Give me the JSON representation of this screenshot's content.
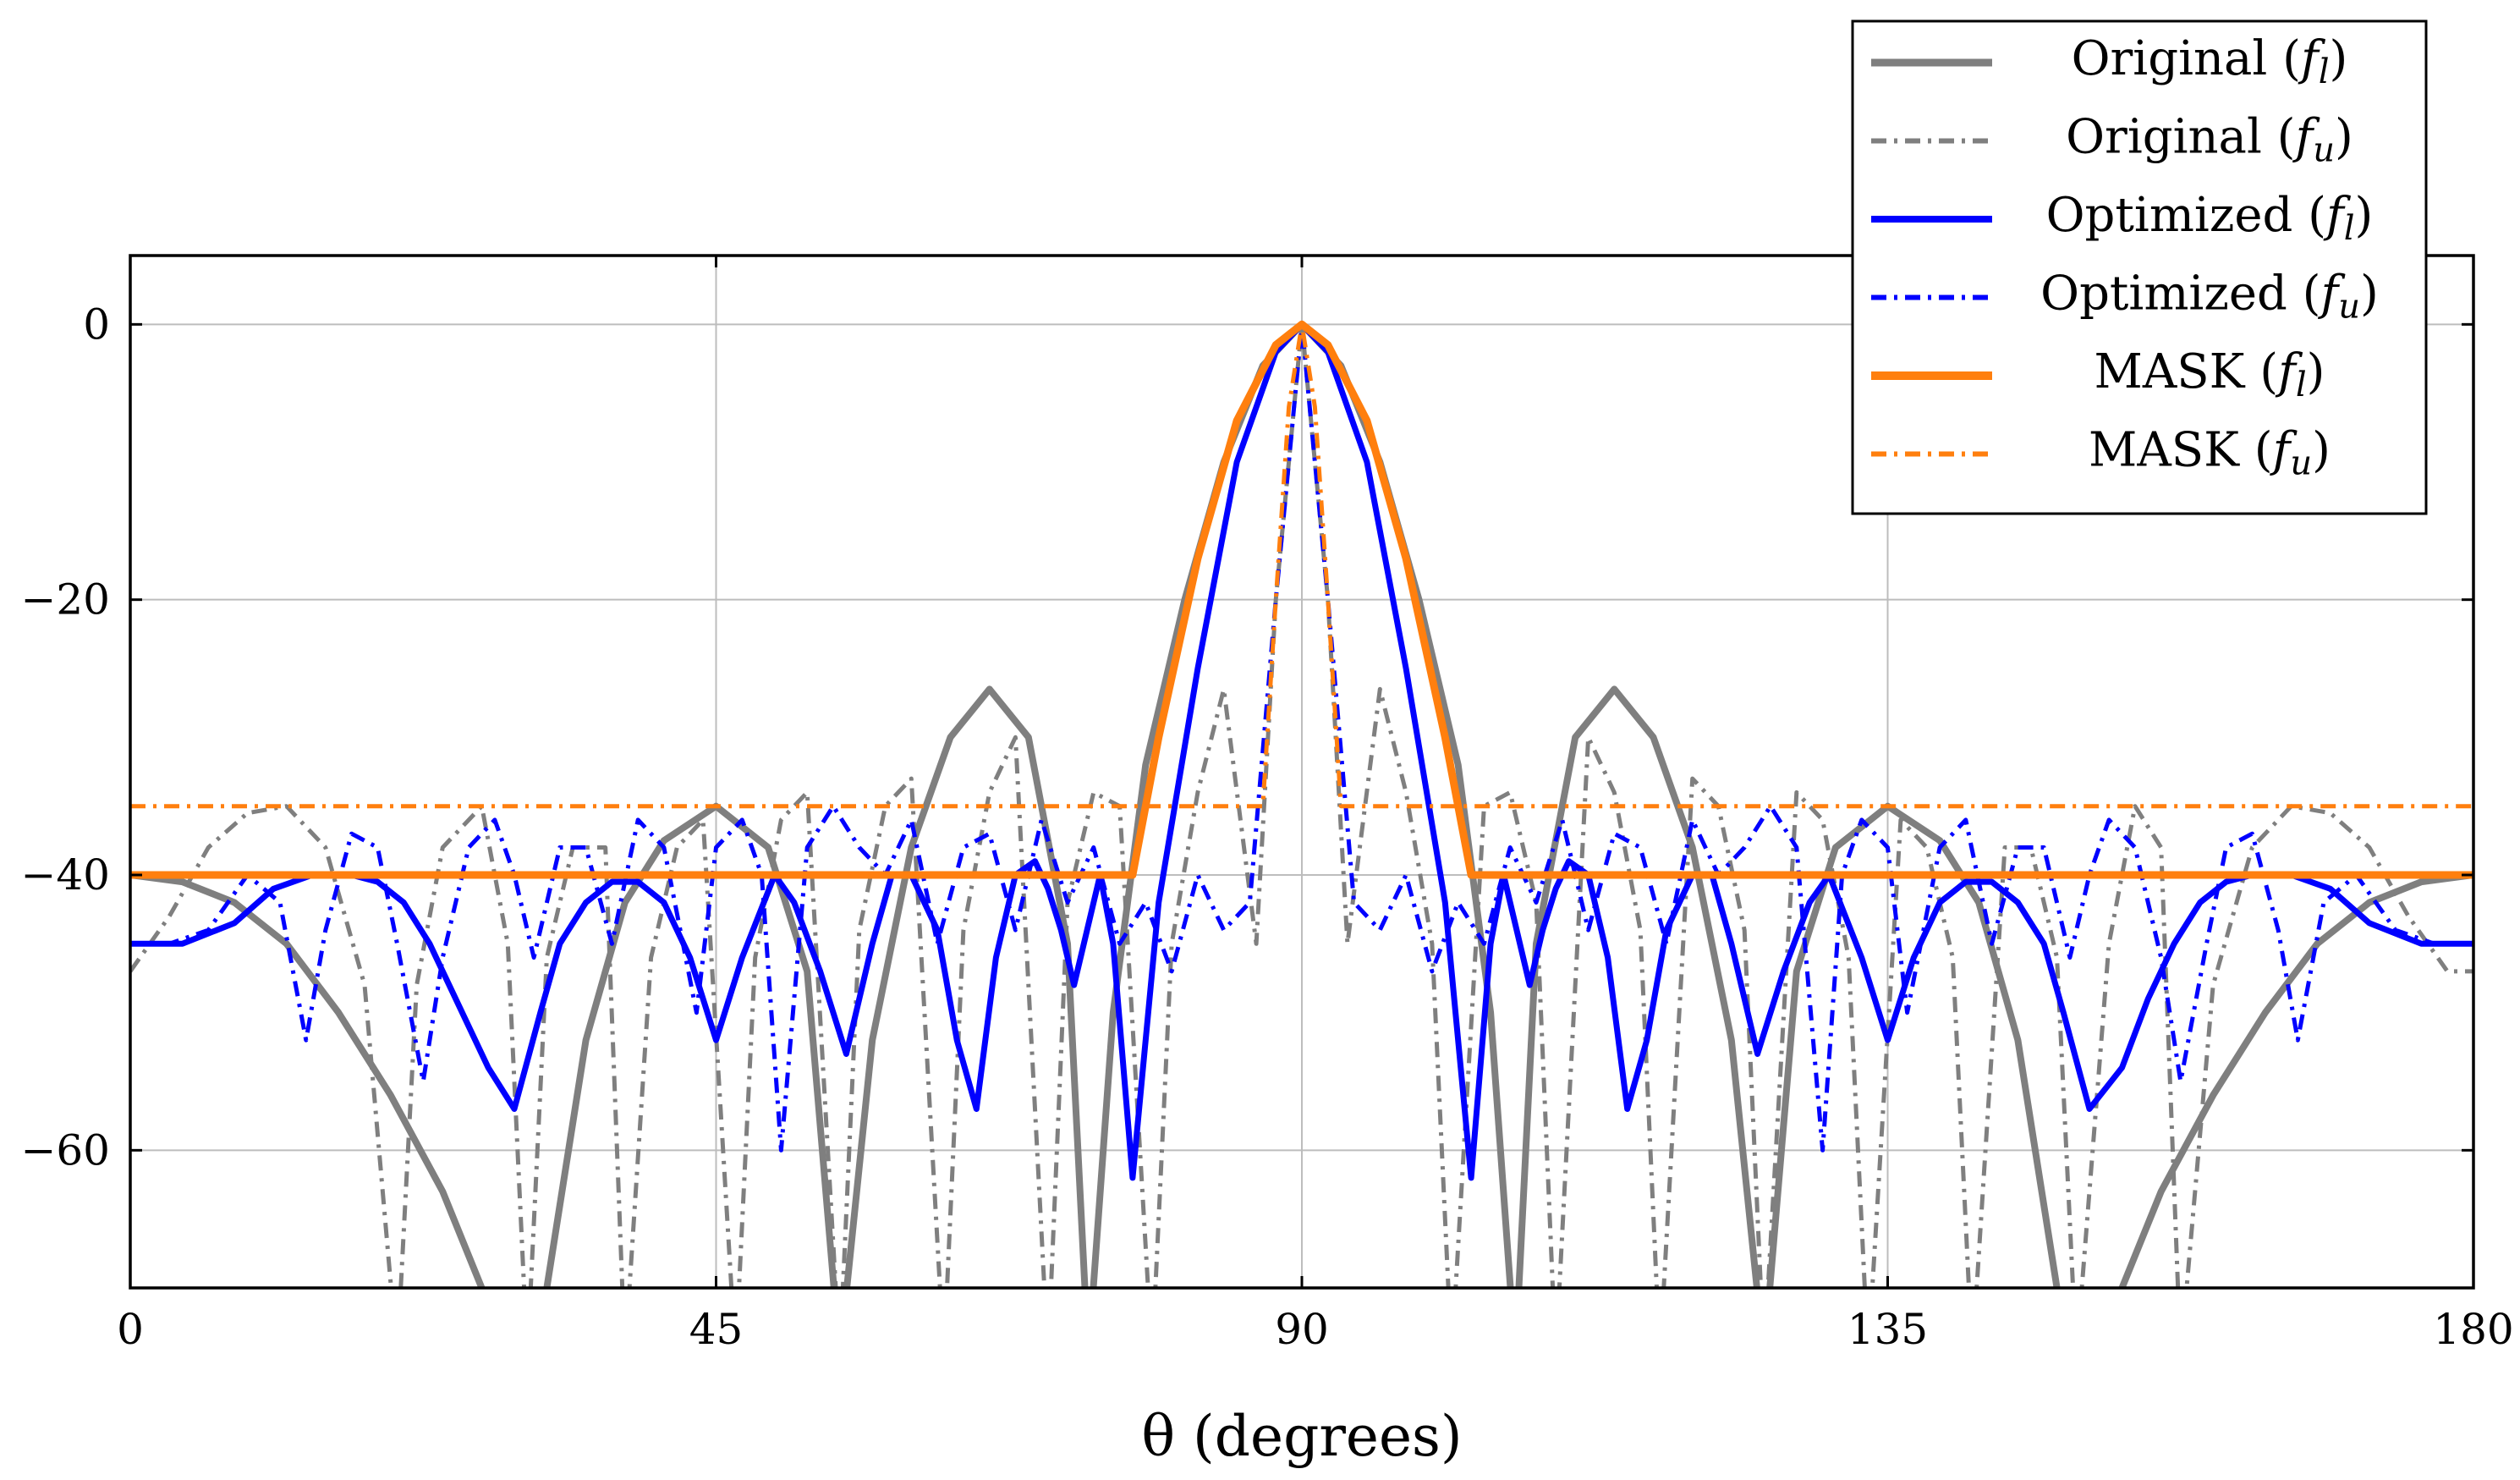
{
  "chart_data": {
    "type": "line",
    "title": "",
    "xlabel": "θ (degrees)",
    "ylabel": "",
    "xlim": [
      0,
      180
    ],
    "ylim": [
      -70,
      5
    ],
    "xticks": [
      0,
      45,
      90,
      135,
      180
    ],
    "yticks": [
      0,
      -20,
      -40,
      -60
    ],
    "xtick_labels": [
      "0",
      "45",
      "90",
      "135",
      "180"
    ],
    "ytick_labels": [
      "0",
      "−20",
      "−40",
      "−60"
    ],
    "grid": true,
    "legend_position": "top-right",
    "series": [
      {
        "name": "Original (f_l)",
        "label_main": "Original (",
        "label_var": "f",
        "label_sub": "l",
        "label_end": ")",
        "color": "#7f7f7f",
        "style": "solid",
        "x": [
          0,
          4,
          8,
          12,
          16,
          20,
          24,
          27,
          29.5,
          32,
          35,
          38,
          41,
          45,
          49,
          52,
          54.5,
          57,
          60,
          63,
          66,
          69,
          72,
          73.6,
          75.5,
          78,
          81,
          84,
          87,
          90,
          93,
          96,
          99,
          102,
          104.5,
          106.4,
          108,
          111,
          114,
          117,
          120,
          123,
          125.5,
          128,
          131,
          135,
          139,
          142,
          145,
          148,
          150.5,
          153,
          156,
          160,
          164,
          168,
          172,
          176,
          180
        ],
        "y": [
          -40,
          -40.5,
          -42,
          -45,
          -50,
          -56,
          -63,
          -70,
          -78,
          -70,
          -52,
          -42,
          -37.5,
          -35,
          -38,
          -47,
          -75,
          -52,
          -38,
          -30,
          -26.5,
          -30,
          -45,
          -75,
          -50,
          -32,
          -20,
          -10,
          -3,
          0,
          -3,
          -10,
          -20,
          -32,
          -50,
          -75,
          -45,
          -30,
          -26.5,
          -30,
          -38,
          -52,
          -75,
          -47,
          -38,
          -35,
          -37.5,
          -42,
          -52,
          -70,
          -78,
          -70,
          -63,
          -56,
          -50,
          -45,
          -42,
          -40.5,
          -40
        ]
      },
      {
        "name": "Original (f_u)",
        "label_main": "Original (",
        "label_var": "f",
        "label_sub": "u",
        "label_end": ")",
        "color": "#7f7f7f",
        "style": "dashdot",
        "x": [
          0,
          3,
          6,
          9,
          12,
          15,
          18,
          20.5,
          22,
          24,
          27,
          29,
          30.5,
          32,
          34,
          36.5,
          38,
          40,
          42,
          44,
          46.5,
          48,
          50,
          52,
          54.5,
          56,
          58,
          60,
          62.5,
          64,
          66,
          68,
          70.5,
          72,
          74,
          76,
          78.5,
          80,
          82,
          84,
          86.5,
          88,
          90,
          92,
          93.5,
          96,
          98,
          100,
          101.5,
          104,
          106,
          108,
          109.5,
          112,
          114,
          116,
          117.5,
          120,
          122,
          124,
          125.5,
          128,
          130,
          132,
          133.5,
          136,
          138,
          140,
          141.5,
          144,
          146,
          148,
          149.5,
          152,
          154,
          156,
          157.5,
          160,
          163,
          166,
          169,
          172,
          175,
          178,
          180
        ],
        "y": [
          -47,
          -43,
          -38,
          -35.5,
          -35,
          -38,
          -48,
          -75,
          -48,
          -38,
          -35,
          -45,
          -75,
          -46,
          -38,
          -38,
          -75,
          -46,
          -38,
          -36,
          -75,
          -46,
          -36,
          -34,
          -75,
          -44,
          -35,
          -33,
          -75,
          -44,
          -34,
          -30,
          -75,
          -42,
          -34,
          -35,
          -75,
          -45,
          -34,
          -26.5,
          -45,
          -20,
          0,
          -20,
          -45,
          -26.5,
          -34,
          -45,
          -75,
          -35,
          -34,
          -42,
          -75,
          -30,
          -34,
          -44,
          -75,
          -33,
          -35,
          -44,
          -75,
          -34,
          -36,
          -46,
          -75,
          -36,
          -38,
          -46,
          -75,
          -38,
          -38,
          -46,
          -75,
          -45,
          -35,
          -38,
          -75,
          -48,
          -38,
          -35,
          -35.5,
          -38,
          -43,
          -47,
          -47
        ]
      },
      {
        "name": "Optimized (f_l)",
        "label_main": "Optimized (",
        "label_var": "f",
        "label_sub": "l",
        "label_end": ")",
        "color": "#0000ff",
        "style": "solid",
        "x": [
          0,
          4,
          8,
          11,
          14,
          17,
          19,
          21,
          23,
          25,
          27.5,
          29.5,
          31.5,
          33,
          35,
          37,
          39,
          41,
          43,
          45,
          47,
          49.5,
          51,
          53,
          55,
          57,
          58.5,
          60,
          62,
          63.5,
          65,
          66.5,
          68,
          69.5,
          70.5,
          71.5,
          72.5,
          73.5,
          74.5,
          75.5,
          77,
          79,
          82,
          85,
          88,
          90,
          92,
          95,
          98,
          101,
          103,
          104.5,
          105.5,
          106.5,
          107.5,
          108.5,
          109.5,
          110.5,
          112,
          113.5,
          115,
          116.5,
          118,
          120,
          121.5,
          123,
          125,
          127,
          129,
          130.5,
          133,
          135,
          137,
          139,
          141,
          143,
          145,
          147,
          148.5,
          150.5,
          153,
          155,
          157,
          159,
          161,
          163,
          166,
          169,
          172,
          176,
          180
        ],
        "y": [
          -45,
          -45,
          -43.5,
          -41,
          -40,
          -40,
          -40.5,
          -42,
          -45,
          -49,
          -54,
          -57,
          -50,
          -45,
          -42,
          -40.5,
          -40.5,
          -42,
          -46,
          -52,
          -46,
          -40,
          -42,
          -47,
          -53,
          -45,
          -40,
          -40,
          -44,
          -52,
          -57,
          -46,
          -40,
          -39,
          -41,
          -44,
          -48,
          -44,
          -40,
          -45,
          -62,
          -42,
          -25,
          -10,
          -2,
          0,
          -2,
          -10,
          -25,
          -42,
          -62,
          -45,
          -40,
          -44,
          -48,
          -44,
          -41,
          -39,
          -40,
          -46,
          -57,
          -52,
          -44,
          -40,
          -40,
          -45,
          -53,
          -47,
          -42,
          -40,
          -46,
          -52,
          -46,
          -42,
          -40.5,
          -40.5,
          -42,
          -45,
          -50,
          -57,
          -54,
          -49,
          -45,
          -42,
          -40.5,
          -40,
          -40,
          -41,
          -43.5,
          -45,
          -45
        ]
      },
      {
        "name": "Optimized (f_u)",
        "label_main": "Optimized (",
        "label_var": "f",
        "label_sub": "u",
        "label_end": ")",
        "color": "#0000ff",
        "style": "dashdot",
        "x": [
          0,
          3,
          6,
          9,
          11.5,
          13.5,
          15,
          17,
          19,
          20.5,
          22.5,
          24,
          26,
          28,
          29.5,
          31,
          33,
          35,
          37,
          39,
          41,
          43.5,
          45,
          47,
          48.5,
          50,
          52,
          54,
          56,
          58,
          60,
          62,
          64,
          66,
          68,
          70,
          72,
          74,
          76,
          78,
          80,
          82,
          84,
          86,
          88,
          90,
          92,
          94,
          96,
          98,
          100,
          102,
          104,
          106,
          108,
          110,
          112,
          114,
          116,
          118,
          120,
          122,
          124,
          126,
          128,
          130,
          131.5,
          133,
          135,
          136.5,
          139,
          141,
          143,
          145,
          147,
          149,
          150.5,
          152,
          154,
          156,
          157.5,
          159.5,
          161,
          163,
          165,
          166.5,
          168.5,
          171,
          174,
          177,
          180
        ],
        "y": [
          -45,
          -45,
          -44,
          -40,
          -42,
          -52,
          -44,
          -37,
          -38,
          -45,
          -55,
          -46,
          -38,
          -36,
          -40,
          -46,
          -38,
          -38,
          -45,
          -36,
          -38,
          -50,
          -38,
          -36,
          -40,
          -60,
          -38,
          -35,
          -38,
          -40,
          -36,
          -45,
          -38,
          -37,
          -44,
          -36,
          -42,
          -38,
          -45,
          -42,
          -47,
          -40,
          -44,
          -42,
          -20,
          0,
          -20,
          -42,
          -44,
          -40,
          -47,
          -42,
          -45,
          -38,
          -42,
          -36,
          -44,
          -37,
          -38,
          -45,
          -36,
          -40,
          -38,
          -35,
          -38,
          -60,
          -40,
          -36,
          -38,
          -50,
          -38,
          -36,
          -45,
          -38,
          -38,
          -46,
          -40,
          -36,
          -38,
          -46,
          -55,
          -45,
          -38,
          -37,
          -44,
          -52,
          -42,
          -40,
          -44,
          -45,
          -45
        ]
      },
      {
        "name": "MASK (f_l)",
        "label_main": "MASK (",
        "label_var": "f",
        "label_sub": "l",
        "label_end": ")",
        "color": "#ff7f0e",
        "style": "solid",
        "x": [
          0,
          77,
          79,
          82,
          85,
          88,
          90,
          92,
          95,
          98,
          101,
          103,
          180
        ],
        "y": [
          -40,
          -40,
          -30,
          -17,
          -7,
          -1.5,
          0,
          -1.5,
          -7,
          -17,
          -30,
          -40,
          -40
        ]
      },
      {
        "name": "MASK (f_u)",
        "label_main": "MASK (",
        "label_var": "f",
        "label_sub": "u",
        "label_end": ")",
        "color": "#ff7f0e",
        "style": "dashdot",
        "x": [
          0,
          87,
          88,
          89,
          90,
          91,
          92,
          93,
          180
        ],
        "y": [
          -35,
          -35,
          -20,
          -6,
          0,
          -6,
          -20,
          -35,
          -35
        ]
      }
    ]
  }
}
